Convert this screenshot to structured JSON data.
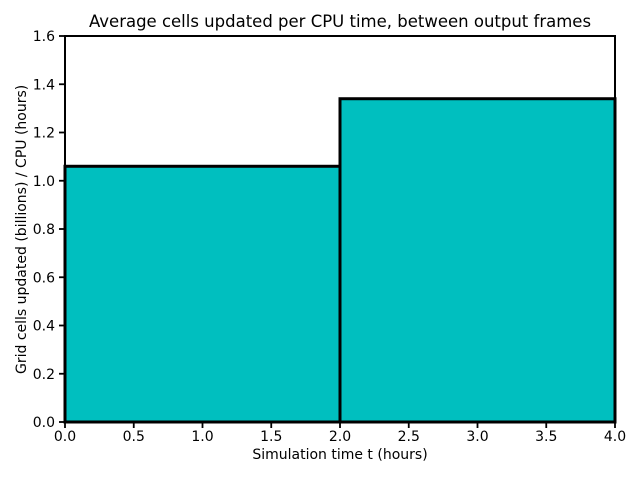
{
  "chart_data": {
    "type": "bar",
    "title": "Average cells updated per CPU time, between output frames",
    "xlabel": "Simulation time t (hours)",
    "ylabel": "Grid cells updated (billions) / CPU (hours)",
    "xlim": [
      0.0,
      4.0
    ],
    "ylim": [
      0.0,
      1.6
    ],
    "xticks": [
      0.0,
      0.5,
      1.0,
      1.5,
      2.0,
      2.5,
      3.0,
      3.5,
      4.0
    ],
    "xtick_labels": [
      "0.0",
      "0.5",
      "1.0",
      "1.5",
      "2.0",
      "2.5",
      "3.0",
      "3.5",
      "4.0"
    ],
    "yticks": [
      0.0,
      0.2,
      0.4,
      0.6,
      0.8,
      1.0,
      1.2,
      1.4,
      1.6
    ],
    "ytick_labels": [
      "0.0",
      "0.2",
      "0.4",
      "0.6",
      "0.8",
      "1.0",
      "1.2",
      "1.4",
      "1.6"
    ],
    "grid": false,
    "legend": null,
    "bars": [
      {
        "x_start": 0.0,
        "x_end": 2.0,
        "value": 1.06
      },
      {
        "x_start": 2.0,
        "x_end": 4.0,
        "value": 1.34
      }
    ],
    "colors": {
      "bar_fill": "#00BFBF",
      "bar_edge": "#000000",
      "axis": "#000000",
      "text": "#000000",
      "background": "#ffffff"
    }
  }
}
